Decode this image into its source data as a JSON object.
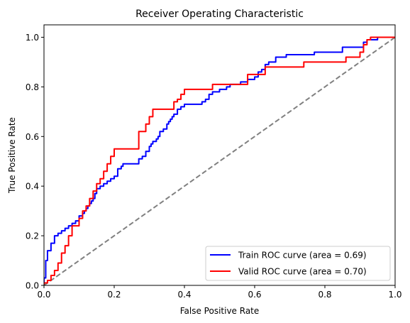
{
  "chart_data": {
    "type": "line",
    "title": "Receiver Operating Characteristic",
    "xlabel": "False Positive Rate",
    "ylabel": "True Positive Rate",
    "xlim": [
      0.0,
      1.0
    ],
    "ylim": [
      0.0,
      1.05
    ],
    "x_ticks": [
      "0.0",
      "0.2",
      "0.4",
      "0.6",
      "0.8",
      "1.0"
    ],
    "y_ticks": [
      "0.0",
      "0.2",
      "0.4",
      "0.6",
      "0.8",
      "1.0"
    ],
    "grid": false,
    "legend_position": "lower-right",
    "series": [
      {
        "name": "Train ROC curve (area = 0.69)",
        "color": "#0000ff",
        "style": "solid",
        "x": [
          0.0,
          0.0,
          0.005,
          0.005,
          0.01,
          0.01,
          0.02,
          0.02,
          0.03,
          0.03,
          0.04,
          0.04,
          0.05,
          0.05,
          0.06,
          0.06,
          0.07,
          0.07,
          0.08,
          0.08,
          0.09,
          0.09,
          0.1,
          0.1,
          0.11,
          0.11,
          0.115,
          0.115,
          0.12,
          0.12,
          0.125,
          0.125,
          0.13,
          0.13,
          0.135,
          0.135,
          0.14,
          0.14,
          0.145,
          0.145,
          0.15,
          0.15,
          0.16,
          0.16,
          0.17,
          0.17,
          0.18,
          0.18,
          0.19,
          0.19,
          0.2,
          0.2,
          0.21,
          0.21,
          0.22,
          0.22,
          0.225,
          0.225,
          0.23,
          0.23,
          0.27,
          0.27,
          0.28,
          0.28,
          0.29,
          0.29,
          0.3,
          0.3,
          0.305,
          0.305,
          0.31,
          0.31,
          0.32,
          0.32,
          0.325,
          0.325,
          0.33,
          0.33,
          0.34,
          0.34,
          0.35,
          0.35,
          0.355,
          0.355,
          0.36,
          0.36,
          0.365,
          0.365,
          0.37,
          0.37,
          0.38,
          0.38,
          0.39,
          0.39,
          0.4,
          0.4,
          0.45,
          0.45,
          0.46,
          0.46,
          0.47,
          0.47,
          0.48,
          0.48,
          0.5,
          0.5,
          0.52,
          0.52,
          0.53,
          0.53,
          0.56,
          0.56,
          0.58,
          0.58,
          0.6,
          0.6,
          0.61,
          0.61,
          0.62,
          0.62,
          0.63,
          0.63,
          0.64,
          0.64,
          0.66,
          0.66,
          0.69,
          0.69,
          0.77,
          0.77,
          0.85,
          0.85,
          0.91,
          0.91,
          0.92,
          0.92,
          0.95,
          0.95,
          1.0
        ],
        "y": [
          0.0,
          0.03,
          0.03,
          0.1,
          0.1,
          0.14,
          0.14,
          0.17,
          0.17,
          0.2,
          0.2,
          0.21,
          0.21,
          0.22,
          0.22,
          0.23,
          0.23,
          0.24,
          0.24,
          0.25,
          0.25,
          0.26,
          0.26,
          0.28,
          0.28,
          0.29,
          0.29,
          0.3,
          0.3,
          0.31,
          0.31,
          0.32,
          0.32,
          0.33,
          0.33,
          0.34,
          0.34,
          0.35,
          0.35,
          0.37,
          0.37,
          0.39,
          0.39,
          0.4,
          0.4,
          0.41,
          0.41,
          0.42,
          0.42,
          0.43,
          0.43,
          0.44,
          0.44,
          0.47,
          0.47,
          0.48,
          0.48,
          0.49,
          0.49,
          0.49,
          0.49,
          0.51,
          0.51,
          0.52,
          0.52,
          0.54,
          0.54,
          0.56,
          0.56,
          0.57,
          0.57,
          0.58,
          0.58,
          0.59,
          0.59,
          0.6,
          0.6,
          0.62,
          0.62,
          0.63,
          0.63,
          0.65,
          0.65,
          0.66,
          0.66,
          0.67,
          0.67,
          0.68,
          0.68,
          0.69,
          0.69,
          0.71,
          0.71,
          0.72,
          0.72,
          0.73,
          0.73,
          0.74,
          0.74,
          0.75,
          0.75,
          0.77,
          0.77,
          0.78,
          0.78,
          0.79,
          0.79,
          0.8,
          0.8,
          0.81,
          0.81,
          0.82,
          0.82,
          0.83,
          0.83,
          0.84,
          0.84,
          0.86,
          0.86,
          0.87,
          0.87,
          0.89,
          0.89,
          0.9,
          0.9,
          0.92,
          0.92,
          0.93,
          0.93,
          0.94,
          0.94,
          0.96,
          0.96,
          0.98,
          0.98,
          0.99,
          0.99,
          1.0,
          1.0
        ]
      },
      {
        "name": "Valid ROC curve (area = 0.70)",
        "color": "#ff0000",
        "style": "solid",
        "x": [
          0.0,
          0.0,
          0.01,
          0.01,
          0.02,
          0.02,
          0.03,
          0.03,
          0.04,
          0.04,
          0.05,
          0.05,
          0.06,
          0.06,
          0.07,
          0.07,
          0.08,
          0.08,
          0.1,
          0.1,
          0.11,
          0.11,
          0.12,
          0.12,
          0.13,
          0.13,
          0.14,
          0.14,
          0.15,
          0.15,
          0.16,
          0.16,
          0.17,
          0.17,
          0.18,
          0.18,
          0.19,
          0.19,
          0.2,
          0.2,
          0.27,
          0.27,
          0.29,
          0.29,
          0.3,
          0.3,
          0.31,
          0.31,
          0.37,
          0.37,
          0.38,
          0.38,
          0.39,
          0.39,
          0.4,
          0.4,
          0.48,
          0.48,
          0.58,
          0.58,
          0.63,
          0.63,
          0.74,
          0.74,
          0.86,
          0.86,
          0.9,
          0.9,
          0.91,
          0.91,
          0.92,
          0.92,
          0.93,
          0.93,
          0.95,
          0.95,
          1.0
        ],
        "y": [
          0.0,
          0.01,
          0.01,
          0.02,
          0.02,
          0.04,
          0.04,
          0.06,
          0.06,
          0.09,
          0.09,
          0.13,
          0.13,
          0.16,
          0.16,
          0.2,
          0.2,
          0.24,
          0.24,
          0.27,
          0.27,
          0.3,
          0.3,
          0.32,
          0.32,
          0.35,
          0.35,
          0.38,
          0.38,
          0.41,
          0.41,
          0.43,
          0.43,
          0.46,
          0.46,
          0.49,
          0.49,
          0.52,
          0.52,
          0.55,
          0.55,
          0.62,
          0.62,
          0.65,
          0.65,
          0.68,
          0.68,
          0.71,
          0.71,
          0.74,
          0.74,
          0.75,
          0.75,
          0.77,
          0.77,
          0.79,
          0.79,
          0.81,
          0.81,
          0.85,
          0.85,
          0.88,
          0.88,
          0.9,
          0.9,
          0.92,
          0.92,
          0.94,
          0.94,
          0.97,
          0.97,
          0.99,
          0.99,
          1.0,
          1.0,
          1.0,
          1.0
        ]
      },
      {
        "name": "",
        "color": "#808080",
        "style": "dashed",
        "x": [
          0.0,
          1.0
        ],
        "y": [
          0.0,
          1.0
        ]
      }
    ]
  }
}
